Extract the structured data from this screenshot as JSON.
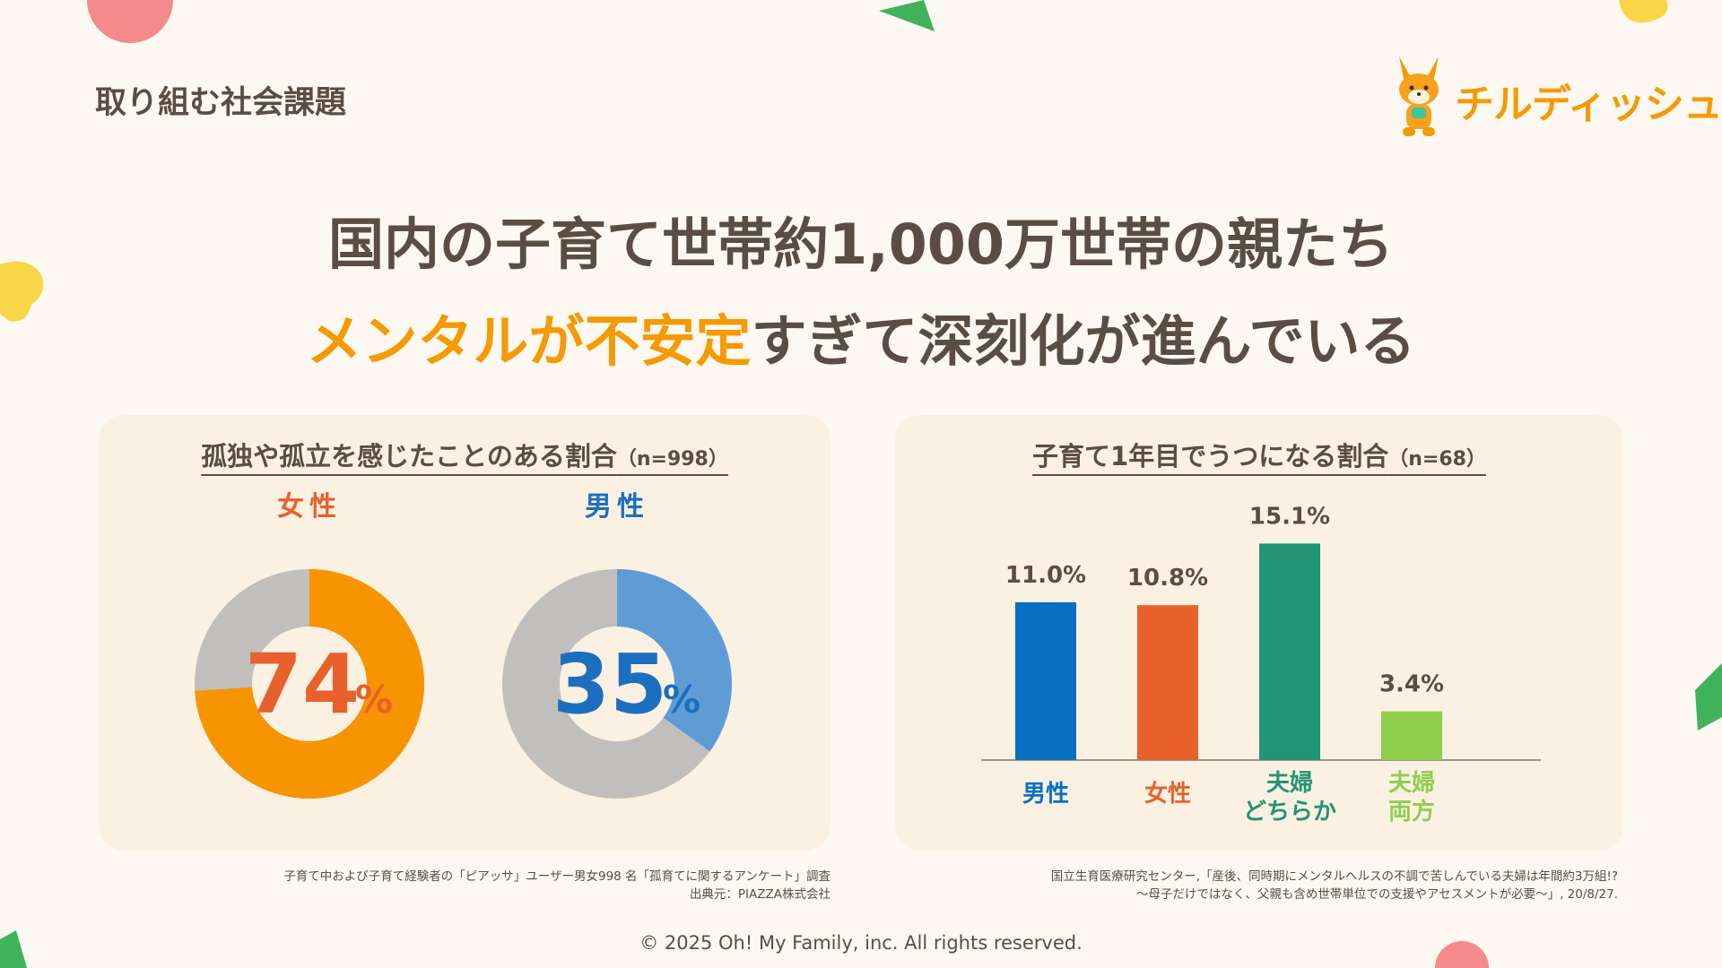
{
  "section_label": "取り組む社会課題",
  "logo": {
    "text": "チルディッシュ",
    "color": "#f59a00"
  },
  "headline": {
    "line1": "国内の子育て世帯約1,000万世帯の親たち",
    "line2_accent": "メンタルが不安定",
    "line2_rest": "すぎて深刻化が進んでいる"
  },
  "colors": {
    "accent": "#f59a00",
    "text": "#5b4d44",
    "background": "#fdf8f1",
    "panel": "#fbf1e3"
  },
  "left_panel": {
    "title": "孤独や孤立を感じたことのある割合",
    "n": "（n=998）",
    "source_line1": "子育て中および子育て経験者の「ピアッサ」ユーザー男女998 名「孤育てに関するアンケート」調査",
    "source_line2": "出典元：PIAZZA株式会社"
  },
  "right_panel": {
    "title": "子育て1年目でうつになる割合",
    "n": "（n=68）",
    "source_line1": "国立生育医療研究センター,「産後、同時期にメンタルヘルスの不調で苦しんでいる夫婦は年間約3万組!?",
    "source_line2": "～母子だけではなく、父親も含め世帯単位での支援やアセスメントが必要～」, 20/8/27."
  },
  "chart_data": [
    {
      "type": "pie",
      "style": "donut",
      "label": "女性",
      "value": 74,
      "center_value": "74",
      "center_unit": "%",
      "color": "#f79400",
      "rest_color": "#c1bfbc",
      "label_color": "#e8602c"
    },
    {
      "type": "pie",
      "style": "donut",
      "label": "男性",
      "value": 35,
      "center_value": "35",
      "center_unit": "%",
      "color": "#5f9cd6",
      "rest_color": "#c1bfbc",
      "label_color": "#1c6fbf"
    },
    {
      "type": "bar",
      "categories": [
        [
          "男性"
        ],
        [
          "女性"
        ],
        [
          "夫婦",
          "どちらか"
        ],
        [
          "夫婦",
          "両方"
        ]
      ],
      "values": [
        11.0,
        10.8,
        15.1,
        3.4
      ],
      "value_labels": [
        "11.0%",
        "10.8%",
        "15.1%",
        "3.4%"
      ],
      "colors": [
        "#0870c1",
        "#e8622c",
        "#219574",
        "#8fce4c"
      ],
      "ylim": [
        0,
        16
      ]
    }
  ],
  "copyright": "© 2025 Oh! My Family, inc. All rights reserved."
}
